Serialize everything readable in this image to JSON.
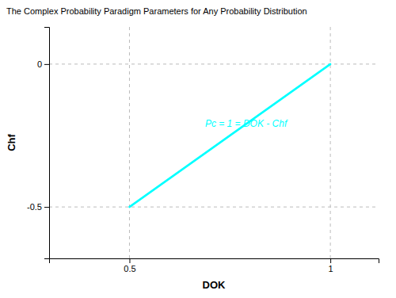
{
  "chart_data": {
    "type": "line",
    "title": "The Complex Probability Paradigm Parameters for Any Probability Distribution",
    "xlabel": "DOK",
    "ylabel": "Chf",
    "x": [
      0.5,
      1.0
    ],
    "values": [
      -0.5,
      0.0
    ],
    "color": "#00ffff",
    "xlim": [
      0.3,
      1.12
    ],
    "ylim": [
      -0.68,
      0.13
    ],
    "xticks": [
      0.5,
      1
    ],
    "yticks": [
      0,
      -0.5
    ],
    "grid": true,
    "annotations": [
      {
        "text": "Pc = 1 = DOK - Chf",
        "x": 0.79,
        "y": -0.21,
        "color": "#00ffff"
      }
    ]
  }
}
